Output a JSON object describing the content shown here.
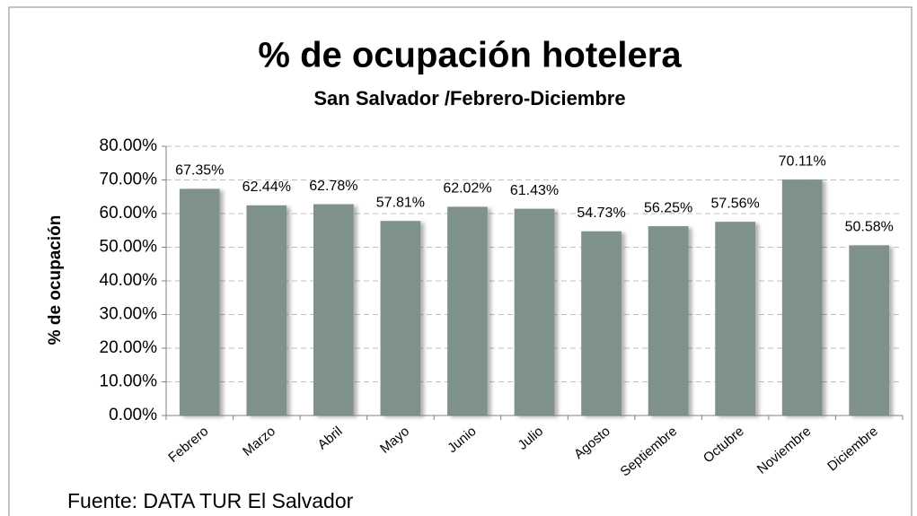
{
  "chart_data": {
    "type": "bar",
    "title": "% de ocupación hotelera",
    "subtitle": "San Salvador /Febrero-Diciembre",
    "y_label": "% de ocupación",
    "source": "Fuente: DATA TUR El Salvador",
    "categories": [
      "Febrero",
      "Marzo",
      "Abril",
      "Mayo",
      "Junio",
      "Julio",
      "Agosto",
      "Septiembre",
      "Octubre",
      "Noviembre",
      "Diciembre"
    ],
    "values": [
      67.35,
      62.44,
      62.78,
      57.81,
      62.02,
      61.43,
      54.73,
      56.25,
      57.56,
      70.11,
      50.58
    ],
    "value_labels": [
      "67.35%",
      "62.44%",
      "62.78%",
      "57.81%",
      "62.02%",
      "61.43%",
      "54.73%",
      "56.25%",
      "57.56%",
      "70.11%",
      "50.58%"
    ],
    "color": "#7f918c",
    "ylim": [
      0,
      80
    ],
    "yticks": [
      {
        "value": 0,
        "label": "0.00%"
      },
      {
        "value": 10,
        "label": "10.00%"
      },
      {
        "value": 20,
        "label": "20.00%"
      },
      {
        "value": 30,
        "label": "30.00%"
      },
      {
        "value": 40,
        "label": "40.00%"
      },
      {
        "value": 50,
        "label": "50.00%"
      },
      {
        "value": 60,
        "label": "60.00%"
      },
      {
        "value": 70,
        "label": "70.00%"
      },
      {
        "value": 80,
        "label": "80.00%"
      }
    ],
    "grid": true
  }
}
